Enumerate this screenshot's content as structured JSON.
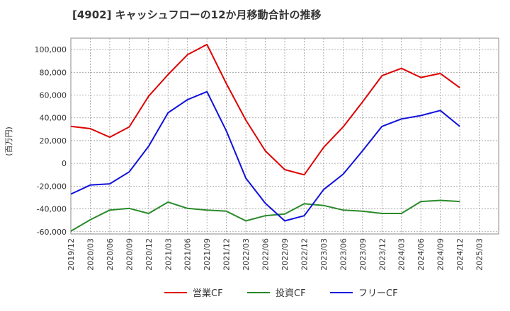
{
  "chart_data": {
    "type": "line",
    "title": "[4902]  キャッシュフローの12か月移動合計の推移",
    "ylabel": "(百万円)",
    "xlabel": "",
    "ylim": [
      -62000,
      110000
    ],
    "yticks": [
      -60000,
      -40000,
      -20000,
      0,
      20000,
      40000,
      60000,
      80000,
      100000
    ],
    "ytick_labels": [
      "-60,000",
      "-40,000",
      "-20,000",
      "0",
      "20,000",
      "40,000",
      "60,000",
      "80,000",
      "100,000"
    ],
    "categories": [
      "2019/12",
      "2020/03",
      "2020/06",
      "2020/09",
      "2020/12",
      "2021/03",
      "2021/06",
      "2021/09",
      "2021/12",
      "2022/03",
      "2022/06",
      "2022/09",
      "2022/12",
      "2023/03",
      "2023/06",
      "2023/09",
      "2023/12",
      "2024/03",
      "2024/06",
      "2024/09",
      "2024/12",
      "2025/03"
    ],
    "grid": true,
    "legend_position": "bottom",
    "series": [
      {
        "name": "営業CF",
        "color": "#dd0000",
        "values": [
          32500,
          30500,
          23000,
          32000,
          59000,
          78000,
          95500,
          104500,
          70000,
          38000,
          11000,
          -5500,
          -10000,
          14000,
          32000,
          54000,
          77000,
          83500,
          75500,
          79000,
          66500,
          null
        ]
      },
      {
        "name": "投資CF",
        "color": "#2a8a2a",
        "values": [
          -59500,
          -49500,
          -41000,
          -39500,
          -44000,
          -34000,
          -39500,
          -41000,
          -42000,
          -50500,
          -46000,
          -44500,
          -35500,
          -37000,
          -41000,
          -42000,
          -44000,
          -44000,
          -33500,
          -32500,
          -33500,
          null
        ]
      },
      {
        "name": "フリーCF",
        "color": "#1010dd",
        "values": [
          -27000,
          -19000,
          -18000,
          -7500,
          15000,
          44500,
          56000,
          63000,
          28500,
          -13000,
          -35000,
          -50500,
          -46000,
          -23000,
          -9500,
          11000,
          32500,
          39000,
          42000,
          46500,
          32500,
          null
        ]
      }
    ]
  }
}
